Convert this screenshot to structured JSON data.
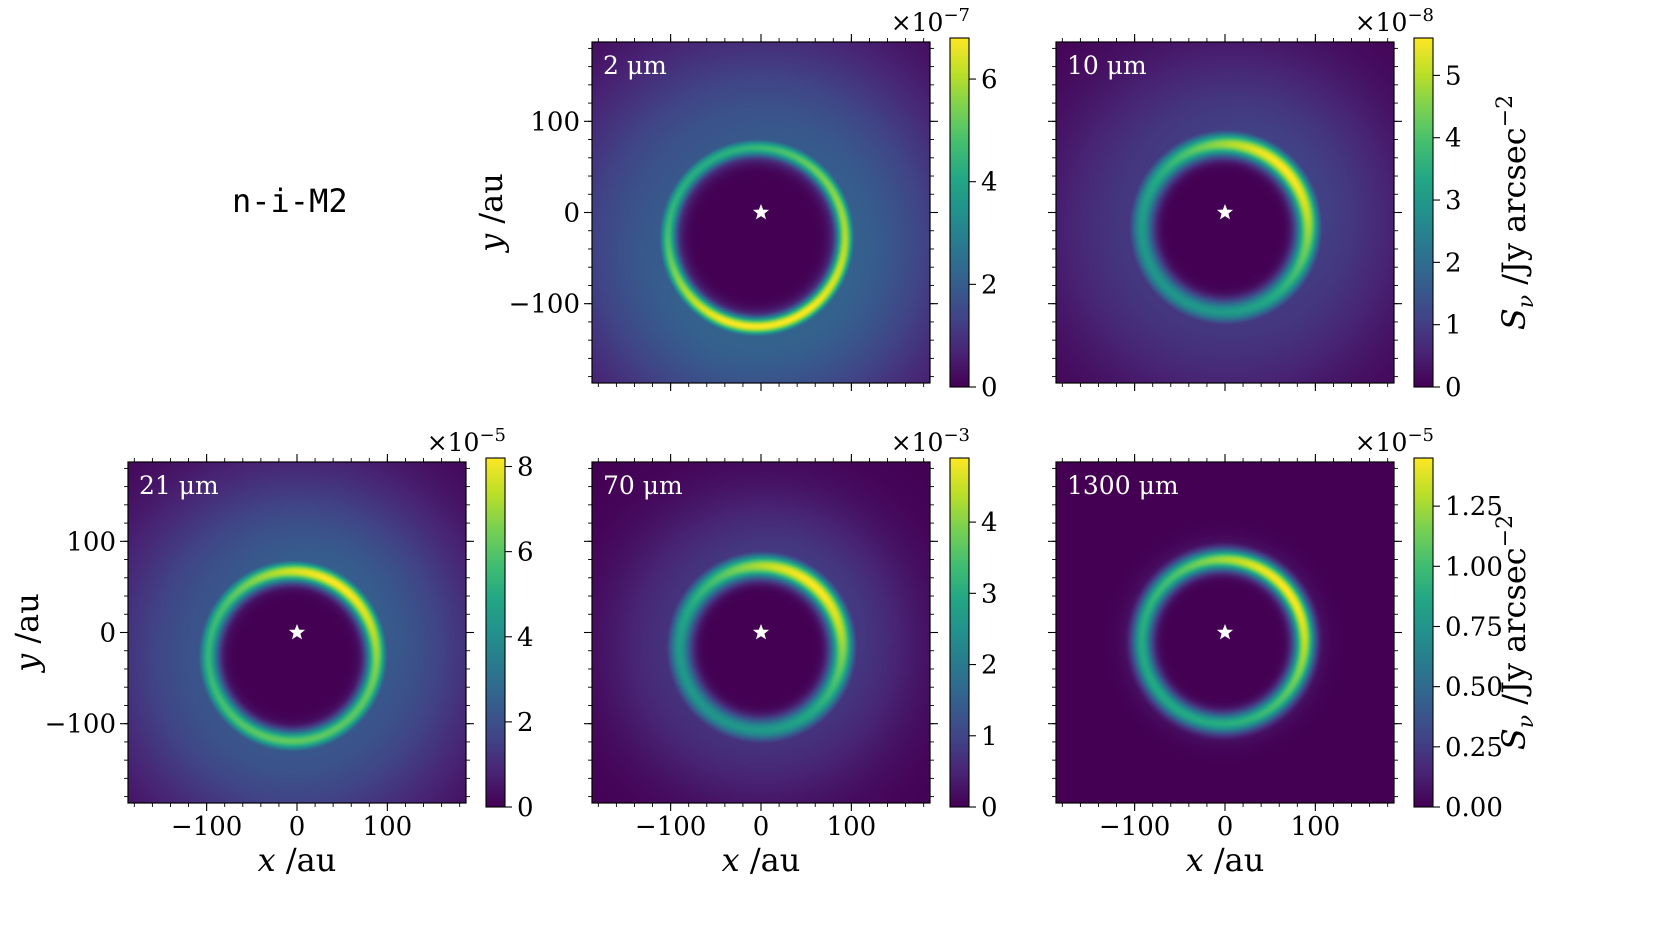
{
  "model_label": "n-i-M2",
  "colormap": [
    "#440154",
    "#482475",
    "#414487",
    "#355f8d",
    "#2a788e",
    "#21918c",
    "#22a884",
    "#44bf70",
    "#7ad151",
    "#bddf26",
    "#fde725"
  ],
  "star_color": "#ffffff",
  "axis_text": {
    "x_symbol": "x",
    "y_symbol": "y",
    "unit": " /au",
    "cbar_symbol": "S",
    "cbar_subscript": "ν",
    "cbar_unit": " /Jy arcsec",
    "cbar_exponent": "−2"
  },
  "chart_data": [
    {
      "type": "heatmap",
      "wavelength_label": "2 μm",
      "panel": "top-middle",
      "xlim": [
        -187,
        187
      ],
      "ylim": [
        -187,
        187
      ],
      "xticks": [
        -100,
        0,
        100
      ],
      "yticks": [
        100,
        0,
        -100
      ],
      "x_tick_labels": [],
      "y_tick_labels": [
        "100",
        "0",
        "−100"
      ],
      "xlabel": "",
      "ylabel": "y /au",
      "colorbar": {
        "vmin": 0,
        "vmax": 6.8,
        "ticks": [
          0,
          2,
          4,
          6
        ],
        "tick_labels": [
          "0",
          "2",
          "4",
          "6"
        ],
        "multiplier": "×10",
        "exponent": "−7",
        "label": ""
      },
      "ring": {
        "center_au": [
          -5,
          -27
        ],
        "radius_au": 98,
        "width_au": 7,
        "halo_width_au": 95,
        "halo_strength": 0.32,
        "peak_angles_deg": [
          -95,
          15
        ],
        "peak_strengths": [
          1.0,
          0.8
        ],
        "base": 0.58
      }
    },
    {
      "type": "heatmap",
      "wavelength_label": "10 μm",
      "panel": "top-right",
      "xlim": [
        -187,
        187
      ],
      "ylim": [
        -187,
        187
      ],
      "xticks": [
        -100,
        0,
        100
      ],
      "yticks": [
        100,
        0,
        -100
      ],
      "x_tick_labels": [],
      "y_tick_labels": [],
      "xlabel": "",
      "ylabel": "",
      "colorbar": {
        "vmin": 0,
        "vmax": 5.6,
        "ticks": [
          0,
          1,
          2,
          3,
          4,
          5
        ],
        "tick_labels": [
          "0",
          "1",
          "2",
          "3",
          "4",
          "5"
        ],
        "multiplier": "×10",
        "exponent": "−8",
        "label": "S_ν /Jy arcsec^−2"
      },
      "ring": {
        "center_au": [
          0,
          -17
        ],
        "radius_au": 92,
        "width_au": 9,
        "halo_width_au": 80,
        "halo_strength": 0.2,
        "peak_angles_deg": [
          45
        ],
        "peak_strengths": [
          1.0
        ],
        "base": 0.52
      }
    },
    {
      "type": "heatmap",
      "wavelength_label": "21 μm",
      "panel": "bottom-left",
      "xlim": [
        -187,
        187
      ],
      "ylim": [
        -187,
        187
      ],
      "xticks": [
        -100,
        0,
        100
      ],
      "yticks": [
        100,
        0,
        -100
      ],
      "x_tick_labels": [
        "−100",
        "0",
        "100"
      ],
      "y_tick_labels": [
        "100",
        "0",
        "−100"
      ],
      "xlabel": "x /au",
      "ylabel": "y /au",
      "colorbar": {
        "vmin": 0,
        "vmax": 8.2,
        "ticks": [
          0,
          2,
          4,
          6,
          8
        ],
        "tick_labels": [
          "0",
          "2",
          "4",
          "6",
          "8"
        ],
        "multiplier": "×10",
        "exponent": "−5",
        "label": ""
      },
      "ring": {
        "center_au": [
          -5,
          -26
        ],
        "radius_au": 93,
        "width_au": 8,
        "halo_width_au": 85,
        "halo_strength": 0.3,
        "peak_angles_deg": [
          60,
          -100
        ],
        "peak_strengths": [
          1.0,
          0.75
        ],
        "base": 0.55
      }
    },
    {
      "type": "heatmap",
      "wavelength_label": "70 μm",
      "panel": "bottom-middle",
      "xlim": [
        -187,
        187
      ],
      "ylim": [
        -187,
        187
      ],
      "xticks": [
        -100,
        0,
        100
      ],
      "yticks": [
        100,
        0,
        -100
      ],
      "x_tick_labels": [
        "−100",
        "0",
        "100"
      ],
      "y_tick_labels": [],
      "xlabel": "x /au",
      "ylabel": "",
      "colorbar": {
        "vmin": 0,
        "vmax": 4.9,
        "ticks": [
          0,
          1,
          2,
          3,
          4
        ],
        "tick_labels": [
          "0",
          "1",
          "2",
          "3",
          "4"
        ],
        "multiplier": "×10",
        "exponent": "−3",
        "label": ""
      },
      "ring": {
        "center_au": [
          0,
          -17
        ],
        "radius_au": 90,
        "width_au": 9,
        "halo_width_au": 60,
        "halo_strength": 0.18,
        "peak_angles_deg": [
          50
        ],
        "peak_strengths": [
          1.0
        ],
        "base": 0.52
      }
    },
    {
      "type": "heatmap",
      "wavelength_label": "1300 μm",
      "panel": "bottom-right",
      "xlim": [
        -187,
        187
      ],
      "ylim": [
        -187,
        187
      ],
      "xticks": [
        -100,
        0,
        100
      ],
      "yticks": [
        100,
        0,
        -100
      ],
      "x_tick_labels": [
        "−100",
        "0",
        "100"
      ],
      "y_tick_labels": [],
      "xlabel": "x /au",
      "ylabel": "",
      "colorbar": {
        "vmin": 0,
        "vmax": 1.45,
        "ticks": [
          0,
          0.25,
          0.5,
          0.75,
          1.0,
          1.25
        ],
        "tick_labels": [
          "0.00",
          "0.25",
          "0.50",
          "0.75",
          "1.00",
          "1.25"
        ],
        "multiplier": "×10",
        "exponent": "−5",
        "label": "S_ν /Jy arcsec^−2"
      },
      "ring": {
        "center_au": [
          -2,
          -10
        ],
        "radius_au": 90,
        "width_au": 8,
        "halo_width_au": 15,
        "halo_strength": 0.1,
        "peak_angles_deg": [
          40
        ],
        "peak_strengths": [
          1.0
        ],
        "base": 0.6
      }
    }
  ]
}
